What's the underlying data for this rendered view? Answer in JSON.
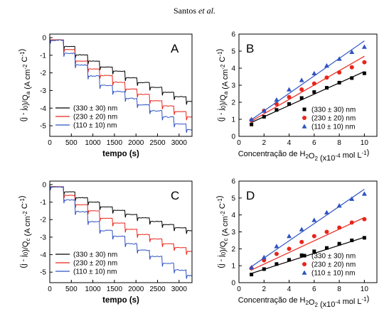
{
  "header": {
    "author": "Santos",
    "etal": "et al."
  },
  "colors": {
    "series": [
      "#000000",
      "#e8251b",
      "#2e53c2"
    ]
  },
  "chart_data": [
    {
      "panel": "A",
      "type": "line",
      "xlabel": "tempo (s)",
      "ylabel": [
        "(j - j",
        "0",
        ")/Q",
        "a",
        " (A cm",
        "-2",
        " C",
        "-1",
        ")"
      ],
      "xlim": [
        0,
        3300
      ],
      "ylim": [
        -5.6,
        0.2
      ],
      "xticks": [
        0,
        500,
        1000,
        1500,
        2000,
        2500,
        3000
      ],
      "yticks": [
        0,
        -1,
        -2,
        -3,
        -4,
        -5
      ],
      "ytick_labels": [
        "0",
        "-1",
        "-2",
        "-3",
        "-4",
        "-5"
      ],
      "legend": "bottom-left",
      "series": [
        {
          "name": "(330 ± 30) nm",
          "steps": [
            0,
            -0.13,
            -0.5,
            -0.98,
            -1.33,
            -1.67,
            -1.9,
            -2.28,
            -2.55,
            -2.82,
            -3.1,
            -3.35,
            -3.62
          ]
        },
        {
          "name": "(230 ± 20) nm",
          "steps": [
            0,
            -0.13,
            -0.68,
            -1.33,
            -1.78,
            -2.15,
            -2.53,
            -2.92,
            -3.22,
            -3.58,
            -3.88,
            -4.2,
            -4.5
          ]
        },
        {
          "name": "(110 ± 10) nm",
          "steps": [
            0,
            -0.15,
            -0.9,
            -1.55,
            -2.18,
            -2.72,
            -3.05,
            -3.45,
            -3.8,
            -4.15,
            -4.5,
            -4.9,
            -5.22
          ]
        }
      ]
    },
    {
      "panel": "B",
      "type": "scatter",
      "xlabel": [
        "Concentração de H",
        "2",
        "O",
        "2",
        " (x10",
        "-4",
        " mol L",
        "-1",
        ")"
      ],
      "ylabel": [
        "(j - j",
        "0",
        ")/Q",
        "a",
        " (A cm",
        "-2",
        " C",
        "-1",
        ")"
      ],
      "xlim": [
        0,
        11
      ],
      "ylim": [
        0,
        6
      ],
      "xticks": [
        0,
        2,
        4,
        6,
        8,
        10
      ],
      "yticks": [
        0,
        1,
        2,
        3,
        4,
        5,
        6
      ],
      "legend": "bottom-right",
      "x": [
        1,
        2,
        3,
        4,
        5,
        6,
        7,
        8,
        9,
        10
      ],
      "series": [
        {
          "name": "(330 ± 30) nm",
          "marker": "square",
          "values": [
            0.7,
            1.15,
            1.55,
            1.9,
            2.25,
            2.6,
            2.85,
            3.15,
            3.42,
            3.7
          ],
          "fit": [
            1,
            0.82,
            10,
            3.8
          ]
        },
        {
          "name": "(230 ± 20) nm",
          "marker": "circle",
          "values": [
            0.95,
            1.5,
            1.9,
            2.3,
            2.75,
            3.1,
            3.45,
            3.75,
            4.05,
            4.35
          ],
          "fit": [
            1,
            0.9,
            10,
            4.7
          ]
        },
        {
          "name": "(110 ± 10) nm",
          "marker": "triangle",
          "values": [
            1.0,
            1.5,
            2.15,
            2.75,
            3.3,
            3.7,
            4.15,
            4.55,
            4.95,
            5.25
          ],
          "fit": [
            1,
            0.98,
            10,
            5.6
          ]
        }
      ]
    },
    {
      "panel": "C",
      "type": "line",
      "xlabel": "tempo (s)",
      "ylabel": [
        "(j - j",
        "0",
        ")/Q",
        "c",
        " (A cm",
        "-2",
        " C",
        "-1",
        ")"
      ],
      "xlim": [
        0,
        3300
      ],
      "ylim": [
        -5.6,
        0.2
      ],
      "xticks": [
        0,
        500,
        1000,
        1500,
        2000,
        2500,
        3000
      ],
      "yticks": [
        0,
        -1,
        -2,
        -3,
        -4,
        -5
      ],
      "ytick_labels": [
        "0",
        "-1",
        "-2",
        "-3",
        "-4",
        "-5"
      ],
      "legend": "bottom-left",
      "series": [
        {
          "name": "(330 ± 30) nm",
          "steps": [
            0,
            -0.12,
            -0.42,
            -0.75,
            -1.0,
            -1.27,
            -1.47,
            -1.7,
            -1.9,
            -2.1,
            -2.28,
            -2.47,
            -2.63
          ]
        },
        {
          "name": "(230 ± 20) nm",
          "steps": [
            0,
            -0.13,
            -0.62,
            -1.15,
            -1.5,
            -1.92,
            -2.2,
            -2.55,
            -2.85,
            -3.1,
            -3.38,
            -3.6,
            -3.82
          ]
        },
        {
          "name": "(110 ± 10) nm",
          "steps": [
            0,
            -0.14,
            -0.88,
            -1.55,
            -2.12,
            -2.62,
            -2.95,
            -3.38,
            -3.75,
            -4.1,
            -4.5,
            -4.88,
            -5.2
          ]
        }
      ]
    },
    {
      "panel": "D",
      "type": "scatter",
      "xlabel": [
        "Concentração de H",
        "2",
        "O",
        "2",
        " (x10",
        "-4",
        " mol L",
        "-1",
        ")"
      ],
      "ylabel": [
        "(j - j",
        "0",
        ")/Q",
        "c",
        " (A cm",
        "-2",
        " C",
        "-1",
        ")"
      ],
      "xlim": [
        0,
        11
      ],
      "ylim": [
        0,
        6
      ],
      "xticks": [
        0,
        2,
        4,
        6,
        8,
        10
      ],
      "yticks": [
        0,
        1,
        2,
        3,
        4,
        5,
        6
      ],
      "legend": "bottom-right",
      "x": [
        1,
        2,
        3,
        4,
        5,
        6,
        7,
        8,
        9,
        10
      ],
      "series": [
        {
          "name": "(330 ± 30) nm",
          "marker": "square",
          "values": [
            0.48,
            0.8,
            1.1,
            1.35,
            1.62,
            1.85,
            2.05,
            2.3,
            2.5,
            2.65
          ],
          "fit": [
            1,
            0.55,
            10,
            2.68
          ]
        },
        {
          "name": "(230 ± 20) nm",
          "marker": "circle",
          "values": [
            0.85,
            1.32,
            1.7,
            2.0,
            2.4,
            2.75,
            3.0,
            3.25,
            3.55,
            3.75
          ],
          "fit": [
            1,
            0.75,
            10,
            3.85
          ]
        },
        {
          "name": "(110 ± 10) nm",
          "marker": "triangle",
          "values": [
            0.9,
            1.5,
            2.15,
            2.75,
            3.15,
            3.7,
            4.15,
            4.55,
            4.95,
            5.25
          ],
          "fit": [
            1,
            0.95,
            10,
            5.52
          ]
        }
      ]
    }
  ]
}
